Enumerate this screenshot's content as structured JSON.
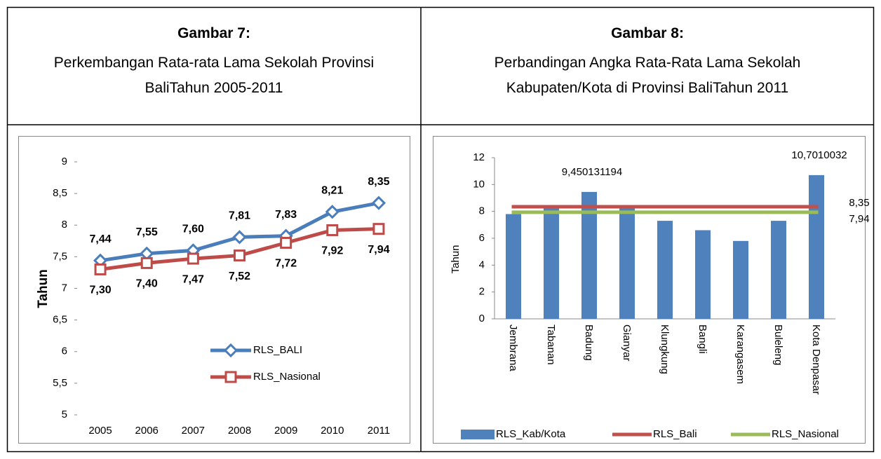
{
  "chart_data": [
    {
      "type": "line",
      "label": "Gambar 7:",
      "title": "Perkembangan Rata-rata Lama Sekolah Provinsi BaliTahun 2005-2011",
      "ylabel": "Tahun",
      "categories": [
        "2005",
        "2006",
        "2007",
        "2008",
        "2009",
        "2010",
        "2011"
      ],
      "series": [
        {
          "name": "RLS_BALI",
          "color": "#4a7ebb",
          "marker": "diamond",
          "label_position": "above",
          "values": [
            7.44,
            7.55,
            7.6,
            7.81,
            7.83,
            8.21,
            8.35
          ],
          "value_labels": [
            "7,44",
            "7,55",
            "7,60",
            "7,81",
            "7,83",
            "8,21",
            "8,35"
          ]
        },
        {
          "name": "RLS_Nasional",
          "color": "#be4b48",
          "marker": "square",
          "label_position": "below",
          "values": [
            7.3,
            7.4,
            7.47,
            7.52,
            7.72,
            7.92,
            7.94
          ],
          "value_labels": [
            "7,30",
            "7,40",
            "7,47",
            "7,52",
            "7,72",
            "7,92",
            "7,94"
          ]
        }
      ],
      "ylim": [
        5,
        9
      ],
      "yticks": [
        5,
        {
          "value": 5.5,
          "label": "5,5"
        },
        6,
        {
          "value": 6.5,
          "label": "6,5"
        },
        7,
        {
          "value": 7.5,
          "label": "7,5"
        },
        8,
        {
          "value": 8.5,
          "label": "8,5"
        },
        9
      ],
      "legend": "inside-lower-right"
    },
    {
      "type": "bar",
      "label": "Gambar 8:",
      "title": "Perbandingan Angka Rata-Rata Lama Sekolah Kabupaten/Kota di Provinsi BaliTahun 2011",
      "ylabel": "Tahun",
      "categories": [
        "Jembrana",
        "Tabanan",
        "Badung",
        "Gianyar",
        "Klungkung",
        "Bangli",
        "Karangasem",
        "Buleleng",
        "Kota Denpasar"
      ],
      "series": [
        {
          "name": "RLS_Kab/Kota",
          "type": "bar",
          "color": "#4f81bd",
          "values": [
            7.8,
            8.3,
            9.450131194,
            8.3,
            7.3,
            6.6,
            5.8,
            7.3,
            10.7010032
          ],
          "value_labels": [
            null,
            null,
            "9,450131194",
            null,
            null,
            null,
            null,
            null,
            "10,7010032"
          ]
        },
        {
          "name": "RLS_Bali",
          "type": "line",
          "color": "#c0504d",
          "values": [
            8.35,
            8.35,
            8.35,
            8.35,
            8.35,
            8.35,
            8.35,
            8.35,
            8.35
          ],
          "value_labels": [
            null,
            null,
            null,
            null,
            null,
            null,
            null,
            null,
            "8,35"
          ]
        },
        {
          "name": "RLS_Nasional",
          "type": "line",
          "color": "#9bbb59",
          "values": [
            7.94,
            7.94,
            7.94,
            7.94,
            7.94,
            7.94,
            7.94,
            7.94,
            7.94
          ],
          "value_labels": [
            null,
            null,
            null,
            null,
            null,
            null,
            null,
            null,
            "7,94"
          ]
        }
      ],
      "ylim": [
        0,
        12
      ],
      "yticks": [
        0,
        2,
        4,
        6,
        8,
        10,
        12
      ],
      "legend": "bottom"
    }
  ]
}
